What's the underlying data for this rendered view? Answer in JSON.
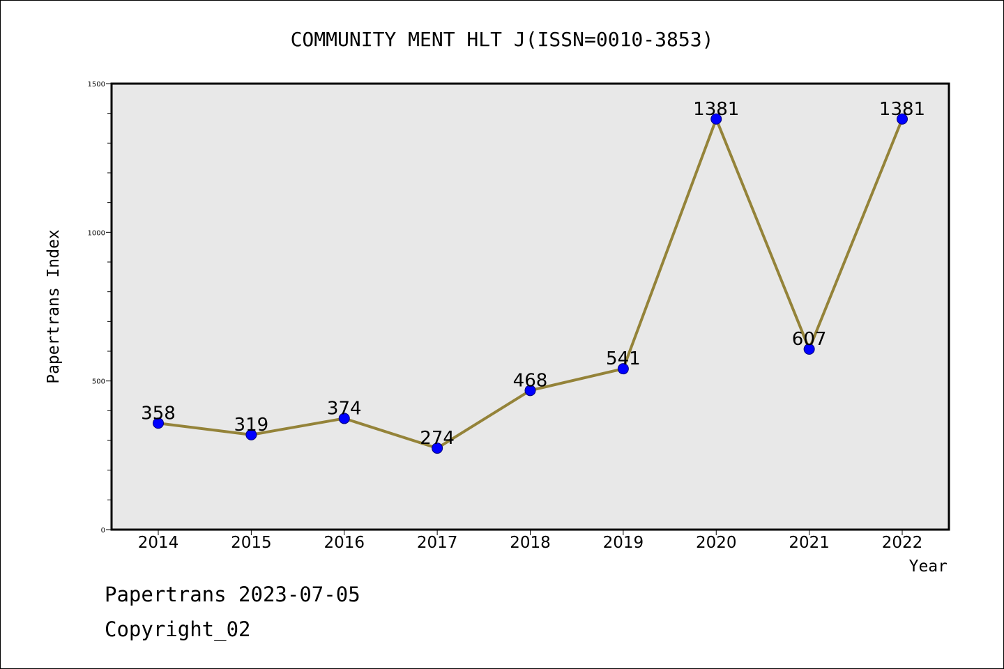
{
  "chart_data": {
    "type": "line",
    "title": "COMMUNITY MENT HLT J(ISSN=0010-3853)",
    "xlabel": "Year",
    "ylabel": "Papertrans Index",
    "categories": [
      "2014",
      "2015",
      "2016",
      "2017",
      "2018",
      "2019",
      "2020",
      "2021",
      "2022"
    ],
    "series": [
      {
        "values": [
          358,
          319,
          374,
          274,
          468,
          541,
          1381,
          607,
          1381
        ],
        "data_labels": [
          "358",
          "319",
          "374",
          "274",
          "468",
          "541",
          "1381",
          "607",
          "1381"
        ]
      }
    ],
    "ylim": [
      0,
      1500
    ],
    "yticks": [
      0,
      500,
      1000,
      1500
    ],
    "ytick_labels": [
      "0",
      "500",
      "1000",
      "1500"
    ],
    "y_minor_step": 100,
    "grid": false,
    "colors": {
      "plot_background": "#e8e8e8",
      "line": "#948339",
      "marker": "#0000ff"
    }
  },
  "footer": {
    "date_line": "Papertrans 2023-07-05",
    "copyright": "Copyright_02"
  }
}
